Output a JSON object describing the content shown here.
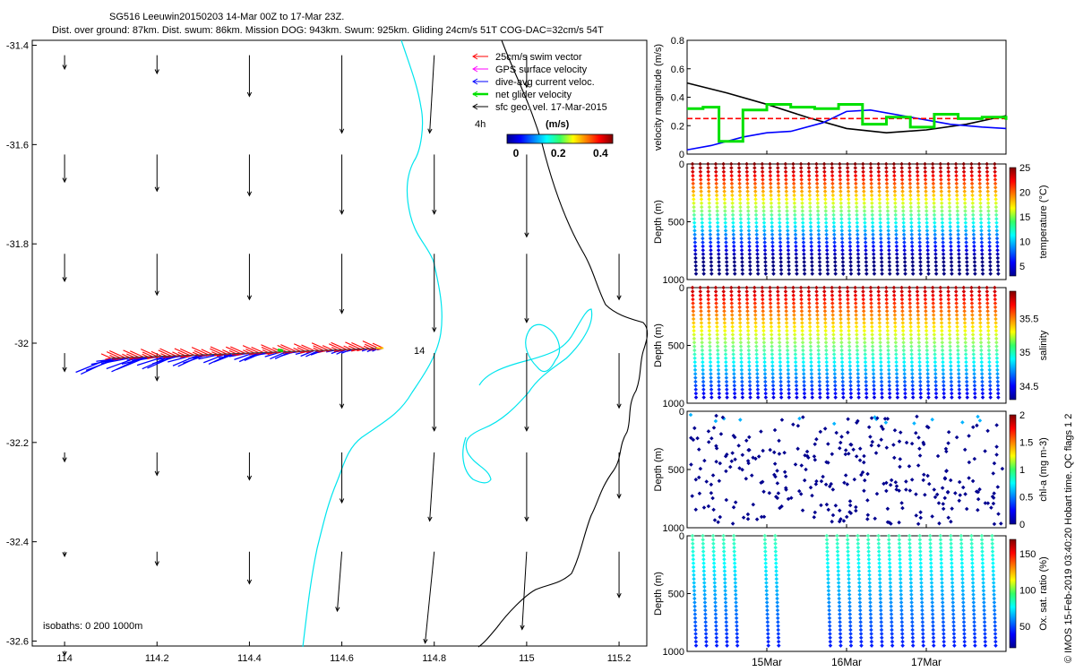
{
  "header": {
    "title": "SG516 Leeuwin20150203 14-Mar 00Z to 17-Mar 23Z.",
    "subtitle": "Dist. over ground: 87km. Dist. swum: 86km. Mission DOG: 943km. Swum: 925km. Gliding 24cm/s 51T COG-DAC=32cm/s 54T"
  },
  "map": {
    "xticks": [
      "114",
      "114.2",
      "114.4",
      "114.6",
      "114.8",
      "115",
      "115.2"
    ],
    "yticks": [
      "-31.4",
      "-31.6",
      "-31.8",
      "-32",
      "-32.2",
      "-32.4",
      "-32.6"
    ],
    "legend": [
      {
        "label": "25cm/s swim vector",
        "color": "#ff0000"
      },
      {
        "label": "GPS surface velocity",
        "color": "#ff00ff"
      },
      {
        "label": "dive-avg current veloc.",
        "color": "#0000ff"
      },
      {
        "label": "net glider velocity",
        "color": "#00e000"
      },
      {
        "label": "sfc geo. vel. 17-Mar-2015",
        "color": "#000000"
      }
    ],
    "hours_label": "4h",
    "colorbar_unit": "(m/s)",
    "colorbar_ticks": [
      "0",
      "0.2",
      "0.4"
    ],
    "track_label": "14",
    "isobath_label": "isobaths: 0   200  1000m"
  },
  "panels": {
    "velocity_ylabel": "velocity magnitude (m/s)",
    "velocity_yticks": [
      "0",
      "0.2",
      "0.4",
      "0.6",
      "0.8"
    ],
    "depth_ylabel": "Depth (m)",
    "temp_label": "temperature (°C)",
    "temp_ticks": [
      "25",
      "20",
      "15",
      "10",
      "5"
    ],
    "sal_label": "salinity",
    "sal_ticks": [
      "35.5",
      "35",
      "34.5"
    ],
    "chl_label": "chl-a (mg m-3)",
    "chl_ticks": [
      "2",
      "1.5",
      "1",
      "0.5",
      "0"
    ],
    "oxy_label": "Ox. sat. ratio (%)",
    "oxy_ticks": [
      "150",
      "100",
      "50"
    ],
    "xticks": [
      "15Mar",
      "16Mar",
      "17Mar"
    ],
    "credit": "© IMOS 15-Feb-2019 03:40:20 Hobart time. QC flags 1 2"
  },
  "chart_data": [
    {
      "type": "scatter",
      "title": "SG516 Leeuwin20150203 14-Mar 00Z to 17-Mar 23Z.",
      "xlabel": "",
      "ylabel": "",
      "xlim": [
        113.93,
        115.26
      ],
      "ylim": [
        -32.61,
        -31.39
      ],
      "glider_track": {
        "start": [
          114.69,
          -32.01
        ],
        "end": [
          114.1,
          -32.03
        ]
      },
      "geo_vectors": [
        [
          114,
          -31.42,
          0.0,
          -0.03
        ],
        [
          114.2,
          -31.42,
          0.0,
          -0.04
        ],
        [
          114.4,
          -31.42,
          0.0,
          -0.09
        ],
        [
          114.6,
          -31.42,
          0.0,
          -0.17
        ],
        [
          114.8,
          -31.42,
          -0.01,
          -0.17
        ],
        [
          115,
          -31.42,
          0.0,
          -0.07
        ],
        [
          114,
          -31.62,
          0.0,
          -0.06
        ],
        [
          114.2,
          -31.62,
          0.0,
          -0.08
        ],
        [
          114.4,
          -31.62,
          0.0,
          -0.09
        ],
        [
          114.6,
          -31.62,
          0.0,
          -0.13
        ],
        [
          114.8,
          -31.62,
          0.0,
          -0.13
        ],
        [
          115,
          -31.62,
          0.0,
          -0.18
        ],
        [
          114,
          -31.82,
          0.0,
          -0.06
        ],
        [
          114.2,
          -31.82,
          0.0,
          -0.09
        ],
        [
          114.4,
          -31.82,
          0.0,
          -0.1
        ],
        [
          114.6,
          -31.82,
          0.0,
          -0.13
        ],
        [
          114.8,
          -31.82,
          0.0,
          -0.17
        ],
        [
          115,
          -31.82,
          0.0,
          -0.15
        ],
        [
          115.2,
          -31.82,
          0.0,
          -0.1
        ],
        [
          114,
          -32.02,
          0.0,
          -0.04
        ],
        [
          114.2,
          -32.02,
          0.0,
          -0.06
        ],
        [
          114.6,
          -32.02,
          0.0,
          -0.12
        ],
        [
          114.8,
          -32.02,
          0.0,
          -0.17
        ],
        [
          115,
          -32.02,
          0.0,
          -0.17
        ],
        [
          115.2,
          -32.02,
          0.0,
          -0.12
        ],
        [
          114,
          -32.22,
          0.0,
          -0.02
        ],
        [
          114.2,
          -32.22,
          0.0,
          -0.05
        ],
        [
          114.4,
          -32.22,
          0.0,
          -0.06
        ],
        [
          114.6,
          -32.22,
          0.0,
          -0.11
        ],
        [
          114.8,
          -32.22,
          -0.01,
          -0.15
        ],
        [
          115,
          -32.22,
          0.0,
          -0.15
        ],
        [
          115.2,
          -32.22,
          0.0,
          -0.1
        ],
        [
          114,
          -32.42,
          0.0,
          -0.01
        ],
        [
          114.2,
          -32.42,
          0.0,
          -0.03
        ],
        [
          114.4,
          -32.42,
          0.0,
          -0.07
        ],
        [
          114.6,
          -32.42,
          -0.01,
          -0.13
        ],
        [
          114.8,
          -32.42,
          -0.02,
          -0.2
        ],
        [
          115,
          -32.42,
          -0.01,
          -0.17
        ],
        [
          115.2,
          -32.42,
          0.0,
          -0.1
        ],
        [
          114,
          -32.62,
          0.0,
          -0.01
        ]
      ]
    },
    {
      "type": "line",
      "ylabel": "velocity magnitude (m/s)",
      "ylim": [
        0,
        0.8
      ],
      "xlim": [
        14,
        18
      ],
      "series": [
        {
          "name": "surface geostrophic",
          "color": "#000000",
          "x": [
            14,
            14.5,
            15,
            15.5,
            16,
            16.5,
            17,
            17.5,
            18
          ],
          "values": [
            0.5,
            0.43,
            0.35,
            0.26,
            0.18,
            0.15,
            0.17,
            0.21,
            0.27
          ]
        },
        {
          "name": "dive-avg current",
          "color": "#0000ff",
          "x": [
            14,
            14.3,
            14.7,
            15,
            15.3,
            15.7,
            16,
            16.3,
            16.7,
            17,
            17.3,
            17.7,
            18
          ],
          "values": [
            0.03,
            0.06,
            0.12,
            0.15,
            0.16,
            0.22,
            0.3,
            0.31,
            0.27,
            0.24,
            0.21,
            0.19,
            0.18
          ]
        },
        {
          "name": "swim",
          "color": "#ff0000",
          "x": [
            14,
            18
          ],
          "values": [
            0.25,
            0.25
          ]
        },
        {
          "name": "net glider velocity",
          "color": "#00e000",
          "x": [
            14,
            14.2,
            14.4,
            14.7,
            15,
            15.3,
            15.6,
            15.9,
            16.2,
            16.5,
            16.8,
            17.1,
            17.4,
            17.7,
            18
          ],
          "values": [
            0.32,
            0.33,
            0.09,
            0.31,
            0.35,
            0.33,
            0.32,
            0.35,
            0.21,
            0.26,
            0.19,
            0.28,
            0.25,
            0.26,
            0.24
          ]
        }
      ]
    },
    {
      "type": "scatter",
      "name": "temperature",
      "ylabel": "Depth (m)",
      "ylim": [
        1000,
        0
      ],
      "clim": [
        3,
        25
      ],
      "dives": 40,
      "max_depth": 950
    },
    {
      "type": "scatter",
      "name": "salinity",
      "ylabel": "Depth (m)",
      "ylim": [
        1000,
        0
      ],
      "clim": [
        34.3,
        35.9
      ],
      "dives": 40,
      "max_depth": 950
    },
    {
      "type": "scatter",
      "name": "chl-a",
      "ylabel": "Depth (m)",
      "ylim": [
        1000,
        0
      ],
      "clim": [
        0,
        2
      ]
    },
    {
      "type": "scatter",
      "name": "oxygen saturation",
      "ylabel": "Depth (m)",
      "ylim": [
        1000,
        0
      ],
      "clim": [
        20,
        170
      ]
    }
  ]
}
